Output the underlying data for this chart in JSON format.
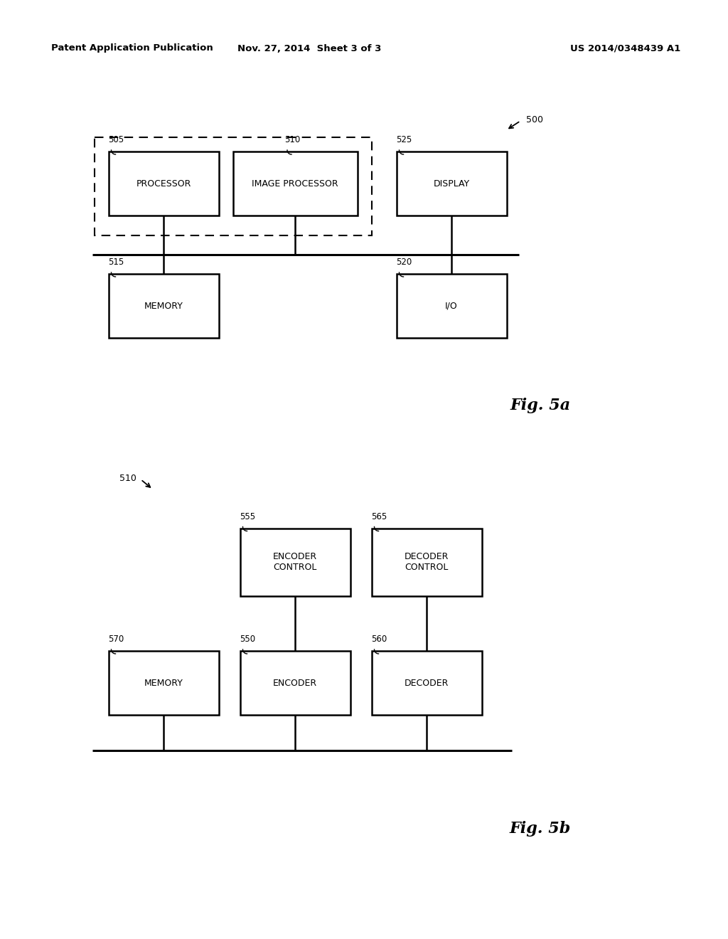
{
  "background_color": "#ffffff",
  "header_left": "Patent Application Publication",
  "header_center": "Nov. 27, 2014  Sheet 3 of 3",
  "header_right": "US 2014/0348439 A1",
  "fig5a_label": "Fig. 5a",
  "fig5b_label": "Fig. 5b",
  "fig5a_ref": "500",
  "fig5b_ref": "510"
}
